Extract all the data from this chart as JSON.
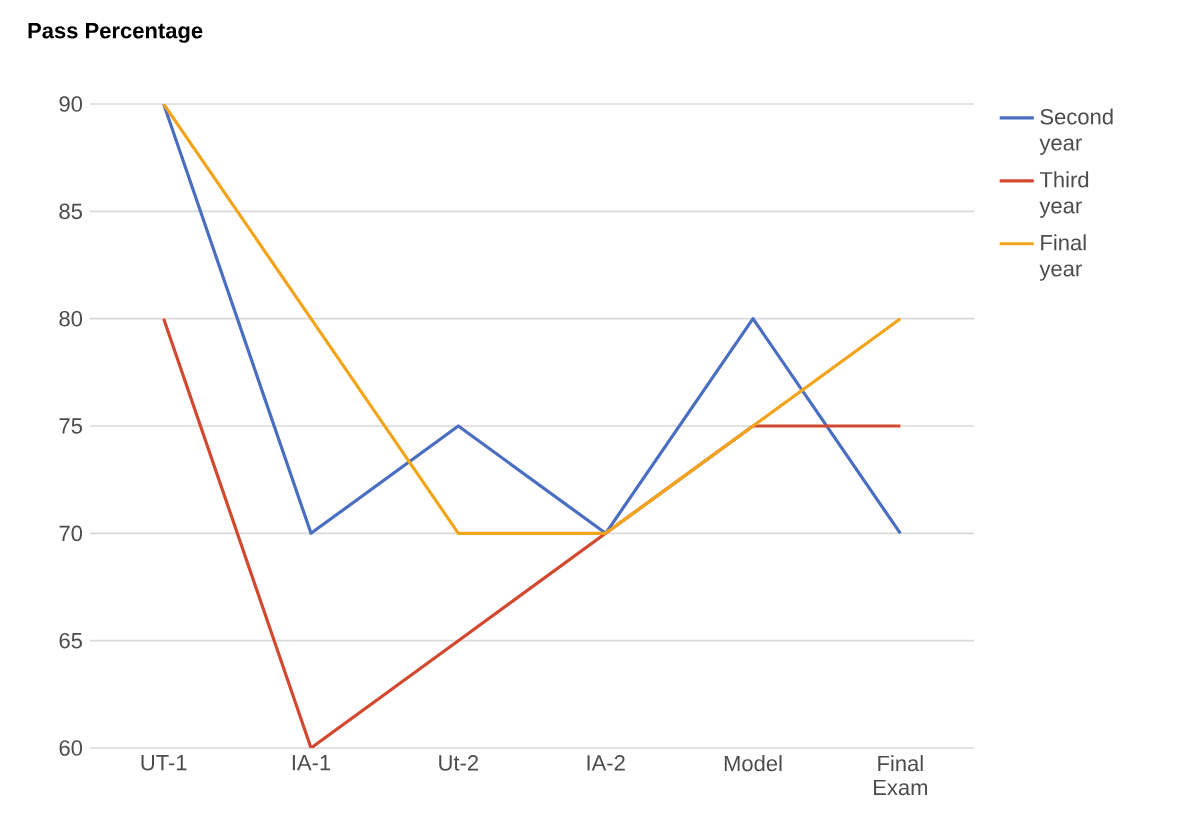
{
  "chart_data": {
    "type": "line",
    "title": "**Pass Percentage**",
    "categories": [
      "UT-1",
      "IA-1",
      "Ut-2",
      "IA-2",
      "Model",
      "Final Exam"
    ],
    "series": [
      {
        "name": "Second year",
        "color": "#4a6fc0",
        "values": [
          90,
          70,
          75,
          70,
          80,
          70
        ]
      },
      {
        "name": "Third year",
        "color": "#d2492f",
        "values": [
          80,
          60,
          65,
          70,
          75,
          75
        ]
      },
      {
        "name": "Final year",
        "color": "#f2a51c",
        "values": [
          90,
          80,
          70,
          70,
          75,
          80
        ]
      }
    ],
    "ylim": [
      60,
      90
    ],
    "yticks": [
      60,
      65,
      70,
      75,
      80,
      85,
      90
    ],
    "grid": "y",
    "legend": "top right",
    "marker": "none",
    "line_style": "solid"
  }
}
